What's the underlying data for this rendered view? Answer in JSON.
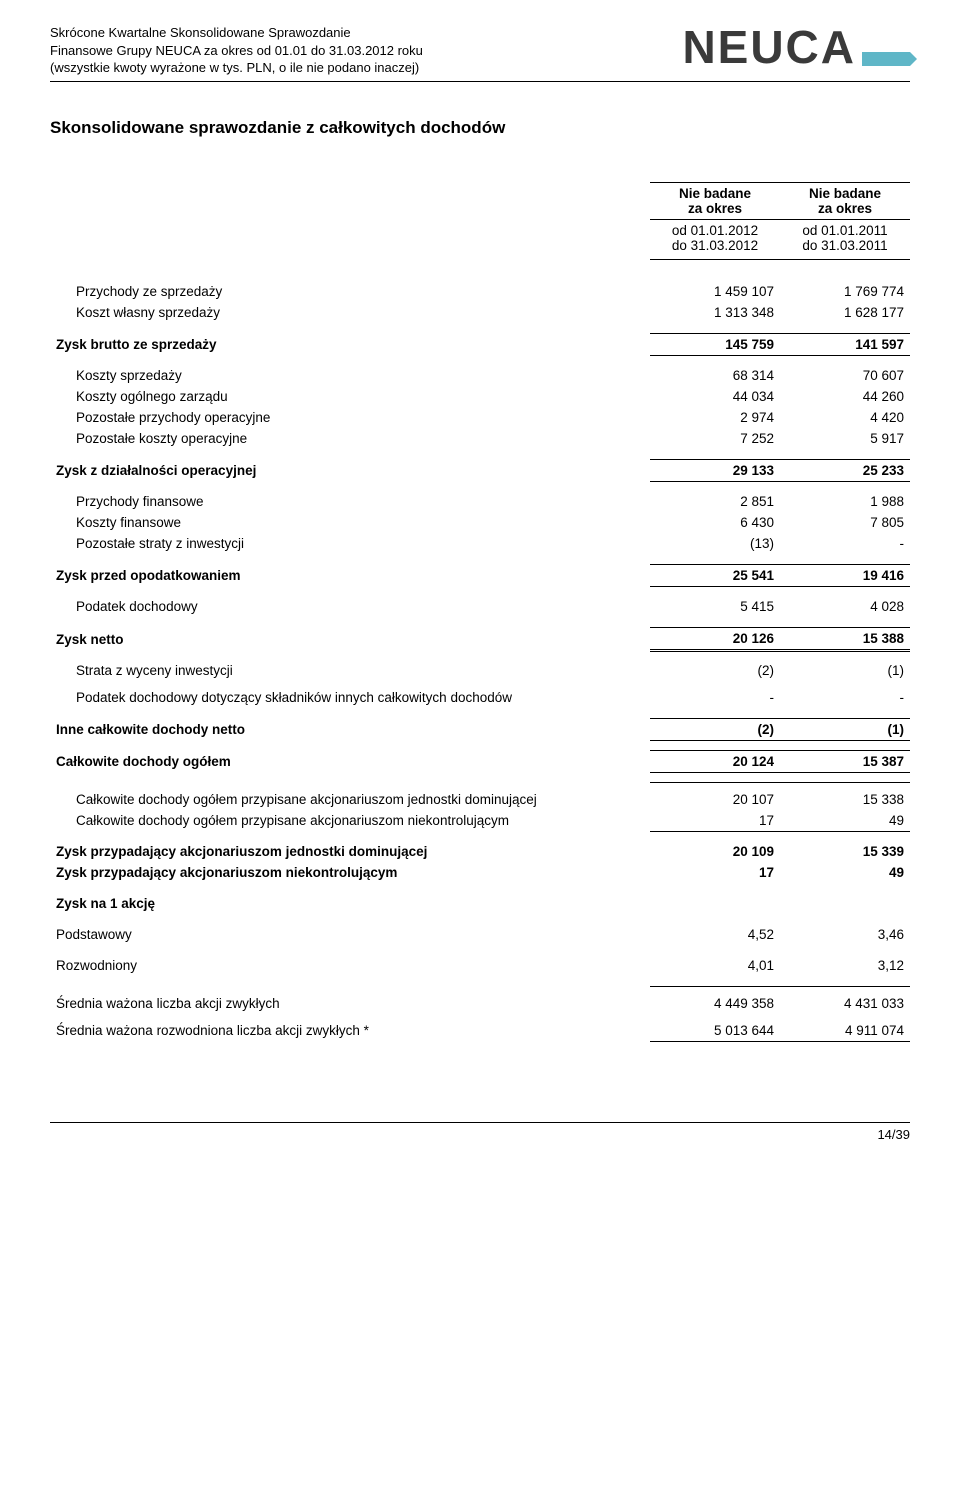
{
  "header": {
    "line1": "Skrócone Kwartalne Skonsolidowane Sprawozdanie",
    "line2": "Finansowe Grupy NEUCA za okres od 01.01 do 31.03.2012 roku",
    "line3": "(wszystkie kwoty wyrażone w tys. PLN, o ile nie podano inaczej)",
    "logo_text": "NEUCA",
    "logo_color": "#5fb6c7"
  },
  "title": "Skonsolidowane sprawozdanie z całkowitych dochodów",
  "columns": {
    "head": "Nie badane\nza okres",
    "period1_from": "od 01.01.2012",
    "period1_to": "do 31.03.2012",
    "period2_from": "od 01.01.2011",
    "period2_to": "do 31.03.2011"
  },
  "rows": {
    "sales_rev": {
      "label": "Przychody ze sprzedaży",
      "c1": "1 459 107",
      "c2": "1 769 774"
    },
    "cogs": {
      "label": "Koszt własny sprzedaży",
      "c1": "1 313 348",
      "c2": "1 628 177"
    },
    "gp": {
      "label": "Zysk brutto ze sprzedaży",
      "c1": "145 759",
      "c2": "141 597"
    },
    "sell_cost": {
      "label": "Koszty sprzedaży",
      "c1": "68 314",
      "c2": "70 607"
    },
    "admin": {
      "label": "Koszty ogólnego zarządu",
      "c1": "44 034",
      "c2": "44 260"
    },
    "oth_inc": {
      "label": "Pozostałe przychody operacyjne",
      "c1": "2 974",
      "c2": "4 420"
    },
    "oth_cost": {
      "label": "Pozostałe koszty operacyjne",
      "c1": "7 252",
      "c2": "5 917"
    },
    "op_prof": {
      "label": "Zysk z działalności operacyjnej",
      "c1": "29 133",
      "c2": "25 233"
    },
    "fin_inc": {
      "label": "Przychody finansowe",
      "c1": "2 851",
      "c2": "1 988"
    },
    "fin_cost": {
      "label": "Koszty finansowe",
      "c1": "6 430",
      "c2": "7 805"
    },
    "inv_loss": {
      "label": "Pozostałe straty z inwestycji",
      "c1": "(13)",
      "c2": "-"
    },
    "pbt": {
      "label": "Zysk przed opodatkowaniem",
      "c1": "25 541",
      "c2": "19 416"
    },
    "tax": {
      "label": "Podatek dochodowy",
      "c1": "5 415",
      "c2": "4 028"
    },
    "np": {
      "label": "Zysk netto",
      "c1": "20 126",
      "c2": "15 388"
    },
    "inv_reval": {
      "label": "Strata z wyceny inwestycji",
      "c1": "(2)",
      "c2": "(1)"
    },
    "tax_oci": {
      "label": "Podatek dochodowy dotyczący składników innych całkowitych dochodów",
      "c1": "-",
      "c2": "-"
    },
    "oci_net": {
      "label": "Inne całkowite dochody netto",
      "c1": "(2)",
      "c2": "(1)"
    },
    "tci": {
      "label": "Całkowite dochody ogółem",
      "c1": "20 124",
      "c2": "15 387"
    },
    "tci_parent": {
      "label": "Całkowite dochody ogółem przypisane akcjonariuszom jednostki dominującej",
      "c1": "20 107",
      "c2": "15 338"
    },
    "tci_nci": {
      "label": "Całkowite dochody ogółem przypisane akcjonariuszom niekontrolującym",
      "c1": "17",
      "c2": "49"
    },
    "np_parent": {
      "label": "Zysk przypadający akcjonariuszom jednostki dominującej",
      "c1": "20 109",
      "c2": "15 339"
    },
    "np_nci": {
      "label": "Zysk przypadający akcjonariuszom niekontrolującym",
      "c1": "17",
      "c2": "49"
    },
    "eps_head": {
      "label": "Zysk na 1 akcję"
    },
    "eps_basic": {
      "label": "Podstawowy",
      "c1": "4,52",
      "c2": "3,46"
    },
    "eps_dil": {
      "label": "Rozwodniony",
      "c1": "4,01",
      "c2": "3,12"
    },
    "wavg_ord": {
      "label": "Średnia ważona liczba akcji zwykłych",
      "c1": "4 449 358",
      "c2": "4 431 033"
    },
    "wavg_dil": {
      "label": "Średnia ważona rozwodniona liczba akcji zwykłych *",
      "c1": "5 013 644",
      "c2": "4 911 074"
    }
  },
  "footer": {
    "page": "14/39"
  }
}
